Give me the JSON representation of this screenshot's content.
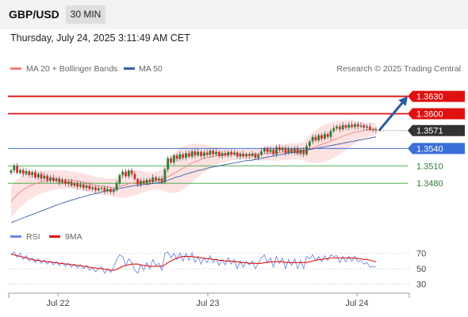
{
  "header": {
    "symbol": "GBP/USD",
    "timeframe": "30 MIN",
    "datetime": "Thursday, July 24, 2025 3:11:49 AM CET"
  },
  "colors": {
    "resistance": "#e01010",
    "support": "#3a6fd8",
    "support_minor": "#4caf50",
    "current": "#333333",
    "bollinger_fill": "#fde2e2",
    "ma20": "#f08080",
    "ma50": "#3a5ea8",
    "candle_up": "#2e7d32",
    "candle_down": "#d32f2f",
    "arrow": "#2c5aa0",
    "rsi": "#6a8ae0",
    "rsi_ma": "#e01010"
  },
  "chart_data": [
    {
      "type": "candlestick",
      "legend": [
        {
          "name": "MA 20 + Bollinger Bands",
          "color": "#f08080"
        },
        {
          "name": "MA 50",
          "color": "#3a5ea8"
        }
      ],
      "legend_placement": "top-left",
      "source": "Research © 2025 Trading Central",
      "ylim": [
        1.3405,
        1.3665
      ],
      "x_tick_labels": [
        "Jul 22",
        "Jul 23",
        "Jul 24"
      ],
      "levels": [
        {
          "value": 1.363,
          "label": "1.3630",
          "kind": "resistance"
        },
        {
          "value": 1.36,
          "label": "1.3600",
          "kind": "resistance"
        },
        {
          "value": 1.3571,
          "label": "1.3571",
          "kind": "current"
        },
        {
          "value": 1.354,
          "label": "1.3540",
          "kind": "support"
        },
        {
          "value": 1.351,
          "label": "1.3510",
          "kind": "support_minor"
        },
        {
          "value": 1.348,
          "label": "1.3480",
          "kind": "support_minor"
        }
      ],
      "close": [
        1.3502,
        1.351,
        1.3498,
        1.3503,
        1.3496,
        1.3501,
        1.3494,
        1.3499,
        1.349,
        1.3496,
        1.3488,
        1.3493,
        1.3485,
        1.349,
        1.3484,
        1.3488,
        1.3481,
        1.3485,
        1.3479,
        1.3483,
        1.3476,
        1.348,
        1.3474,
        1.3478,
        1.3472,
        1.3476,
        1.347,
        1.3473,
        1.3468,
        1.3471,
        1.3472,
        1.3466,
        1.347,
        1.3465,
        1.3468,
        1.348,
        1.3494,
        1.35,
        1.3492,
        1.3502,
        1.3496,
        1.3487,
        1.3478,
        1.3484,
        1.348,
        1.3486,
        1.3482,
        1.349,
        1.3485,
        1.3488,
        1.3482,
        1.3504,
        1.3523,
        1.3516,
        1.3528,
        1.3522,
        1.353,
        1.3524,
        1.3532,
        1.3526,
        1.3535,
        1.3528,
        1.3534,
        1.3527,
        1.3533,
        1.3529,
        1.3536,
        1.353,
        1.3534,
        1.3527,
        1.3532,
        1.3528,
        1.3534,
        1.353,
        1.3533,
        1.3526,
        1.3531,
        1.3526,
        1.353,
        1.3527,
        1.3531,
        1.3524,
        1.3529,
        1.3535,
        1.354,
        1.3534,
        1.3538,
        1.353,
        1.3542,
        1.3537,
        1.3541,
        1.3532,
        1.3539,
        1.3534,
        1.354,
        1.3531,
        1.3538,
        1.353,
        1.3544,
        1.3552,
        1.356,
        1.3554,
        1.3563,
        1.3557,
        1.3565,
        1.356,
        1.357,
        1.3575,
        1.3578,
        1.3573,
        1.358,
        1.3576,
        1.3581,
        1.3577,
        1.3582,
        1.3578,
        1.358,
        1.3576,
        1.3578,
        1.3572,
        1.3573,
        1.3571
      ],
      "ma20": [
        1.3448,
        1.3455,
        1.346,
        1.3465,
        1.3469,
        1.3472,
        1.3475,
        1.3477,
        1.3479,
        1.3481,
        1.3482,
        1.3483,
        1.3484,
        1.3485,
        1.3485,
        1.3486,
        1.3486,
        1.3486,
        1.3486,
        1.3486,
        1.3485,
        1.3485,
        1.3484,
        1.3483,
        1.3482,
        1.3481,
        1.3479,
        1.3478,
        1.3476,
        1.3475,
        1.3475,
        1.3474,
        1.3473,
        1.3473,
        1.3472,
        1.3473,
        1.3474,
        1.3476,
        1.3477,
        1.3479,
        1.348,
        1.3481,
        1.3481,
        1.3482,
        1.3482,
        1.3483,
        1.3483,
        1.3484,
        1.3484,
        1.3485,
        1.3486,
        1.3488,
        1.3491,
        1.3494,
        1.3497,
        1.35,
        1.3503,
        1.3506,
        1.3509,
        1.3512,
        1.3515,
        1.3517,
        1.3519,
        1.3521,
        1.3523,
        1.3524,
        1.3525,
        1.3526,
        1.3527,
        1.3528,
        1.3528,
        1.3529,
        1.3529,
        1.353,
        1.353,
        1.353,
        1.353,
        1.353,
        1.353,
        1.353,
        1.353,
        1.353,
        1.353,
        1.3531,
        1.3531,
        1.3532,
        1.3532,
        1.3532,
        1.3533,
        1.3533,
        1.3534,
        1.3534,
        1.3534,
        1.3535,
        1.3535,
        1.3535,
        1.3535,
        1.3536,
        1.3537,
        1.3539,
        1.3541,
        1.3543,
        1.3545,
        1.3547,
        1.3549,
        1.3551,
        1.3553,
        1.3555,
        1.3557,
        1.3559,
        1.3561,
        1.3563,
        1.3565,
        1.3567,
        1.3568,
        1.3569,
        1.357,
        1.3571,
        1.3572,
        1.3573,
        1.3573,
        1.3574
      ],
      "bb_width": [
        0.0026,
        0.0027,
        0.0027,
        0.0026,
        0.0026,
        0.0025,
        0.0024,
        0.0023,
        0.0022,
        0.0021,
        0.002,
        0.0019,
        0.0018,
        0.0018,
        0.0017,
        0.0017,
        0.0016,
        0.0016,
        0.0016,
        0.0015,
        0.0015,
        0.0015,
        0.0015,
        0.0015,
        0.0015,
        0.0015,
        0.0015,
        0.0015,
        0.0015,
        0.0015,
        0.0015,
        0.0015,
        0.0015,
        0.0015,
        0.0016,
        0.0017,
        0.0019,
        0.0021,
        0.0022,
        0.0023,
        0.0023,
        0.0022,
        0.0021,
        0.0019,
        0.0018,
        0.0016,
        0.0015,
        0.0015,
        0.0015,
        0.0016,
        0.0018,
        0.0022,
        0.0027,
        0.0031,
        0.0034,
        0.0036,
        0.0037,
        0.0037,
        0.0036,
        0.0035,
        0.0033,
        0.0031,
        0.0029,
        0.0026,
        0.0024,
        0.0022,
        0.0019,
        0.0017,
        0.0015,
        0.0014,
        0.0013,
        0.0012,
        0.0011,
        0.001,
        0.001,
        0.0009,
        0.0009,
        0.0009,
        0.0009,
        0.0009,
        0.0009,
        0.001,
        0.001,
        0.0011,
        0.0012,
        0.0012,
        0.0013,
        0.0013,
        0.0014,
        0.0014,
        0.0014,
        0.0014,
        0.0014,
        0.0014,
        0.0014,
        0.0014,
        0.0015,
        0.0017,
        0.002,
        0.0023,
        0.0026,
        0.0028,
        0.003,
        0.0031,
        0.0032,
        0.0032,
        0.0031,
        0.0031,
        0.003,
        0.0029,
        0.0027,
        0.0026,
        0.0024,
        0.0022,
        0.002,
        0.0018,
        0.0016,
        0.0015,
        0.0013,
        0.0012,
        0.0011,
        0.001
      ],
      "ma50": [
        1.3412,
        1.3414,
        1.3416,
        1.3418,
        1.342,
        1.3422,
        1.3424,
        1.3426,
        1.3428,
        1.343,
        1.3432,
        1.3434,
        1.3436,
        1.3438,
        1.344,
        1.3442,
        1.3444,
        1.3446,
        1.3447,
        1.3449,
        1.3451,
        1.3452,
        1.3454,
        1.3455,
        1.3457,
        1.3458,
        1.346,
        1.3461,
        1.3462,
        1.3463,
        1.3465,
        1.3466,
        1.3467,
        1.3468,
        1.3469,
        1.347,
        1.3471,
        1.3472,
        1.3473,
        1.3474,
        1.3475,
        1.3476,
        1.3476,
        1.3477,
        1.3478,
        1.3478,
        1.3479,
        1.348,
        1.348,
        1.3481,
        1.3481,
        1.3483,
        1.3485,
        1.3487,
        1.3489,
        1.3491,
        1.3492,
        1.3494,
        1.3496,
        1.3497,
        1.3499,
        1.35,
        1.3502,
        1.3503,
        1.3504,
        1.3506,
        1.3507,
        1.3508,
        1.3509,
        1.351,
        1.3511,
        1.3512,
        1.3513,
        1.3514,
        1.3515,
        1.3516,
        1.3517,
        1.3518,
        1.3519,
        1.3519,
        1.352,
        1.3521,
        1.3522,
        1.3523,
        1.3524,
        1.3525,
        1.3526,
        1.3527,
        1.3528,
        1.3529,
        1.353,
        1.3531,
        1.3532,
        1.3533,
        1.3533,
        1.3534,
        1.3535,
        1.3536,
        1.3537,
        1.3538,
        1.3539,
        1.354,
        1.3541,
        1.3542,
        1.3543,
        1.3544,
        1.3545,
        1.3546,
        1.3547,
        1.3548,
        1.3549,
        1.355,
        1.3551,
        1.3552,
        1.3553,
        1.3554,
        1.3555,
        1.3556,
        1.3557,
        1.3558,
        1.3559,
        1.356
      ],
      "forecast_arrow": {
        "from": 1.3571,
        "to": 1.363
      }
    },
    {
      "type": "line",
      "legend": [
        {
          "name": "RSI",
          "color": "#6a8ae0"
        },
        {
          "name": "9MA",
          "color": "#e01010"
        }
      ],
      "ylim": [
        22,
        78
      ],
      "y_tick_labels": [
        "70",
        "50",
        "30"
      ],
      "y_ticks": [
        70,
        50,
        30
      ],
      "rsi": [
        68,
        72,
        65,
        70,
        62,
        67,
        60,
        64,
        58,
        63,
        57,
        61,
        56,
        60,
        55,
        59,
        54,
        58,
        53,
        57,
        52,
        56,
        51,
        55,
        50,
        54,
        48,
        52,
        46,
        50,
        52,
        44,
        50,
        45,
        52,
        62,
        68,
        66,
        54,
        63,
        58,
        48,
        44,
        55,
        48,
        58,
        50,
        62,
        54,
        57,
        48,
        70,
        72,
        64,
        70,
        62,
        71,
        60,
        70,
        61,
        71,
        58,
        66,
        56,
        64,
        58,
        67,
        58,
        63,
        54,
        62,
        55,
        64,
        56,
        62,
        50,
        60,
        52,
        59,
        55,
        60,
        50,
        57,
        64,
        68,
        58,
        64,
        52,
        66,
        57,
        64,
        50,
        62,
        54,
        63,
        50,
        61,
        50,
        66,
        63,
        68,
        60,
        66,
        59,
        67,
        61,
        68,
        66,
        67,
        58,
        66,
        59,
        66,
        60,
        66,
        59,
        61,
        56,
        58,
        52,
        53,
        52
      ],
      "ma9": [
        69,
        68,
        67,
        66,
        65,
        64,
        63,
        62,
        61,
        61,
        60,
        60,
        59,
        59,
        58,
        58,
        57,
        57,
        56,
        56,
        55,
        55,
        54,
        54,
        53,
        53,
        52,
        51,
        51,
        50,
        50,
        49,
        49,
        48,
        48,
        49,
        51,
        53,
        54,
        55,
        56,
        56,
        56,
        55,
        54,
        54,
        53,
        53,
        53,
        53,
        53,
        55,
        58,
        60,
        62,
        64,
        65,
        66,
        66,
        66,
        66,
        65,
        65,
        64,
        64,
        63,
        63,
        62,
        62,
        61,
        61,
        60,
        60,
        60,
        59,
        59,
        58,
        58,
        58,
        57,
        57,
        57,
        57,
        57,
        58,
        58,
        59,
        59,
        59,
        59,
        59,
        58,
        58,
        58,
        58,
        58,
        58,
        58,
        58,
        59,
        60,
        61,
        62,
        62,
        63,
        63,
        64,
        64,
        64,
        64,
        64,
        64,
        64,
        64,
        64,
        63,
        63,
        62,
        62,
        61,
        60,
        59
      ]
    }
  ]
}
